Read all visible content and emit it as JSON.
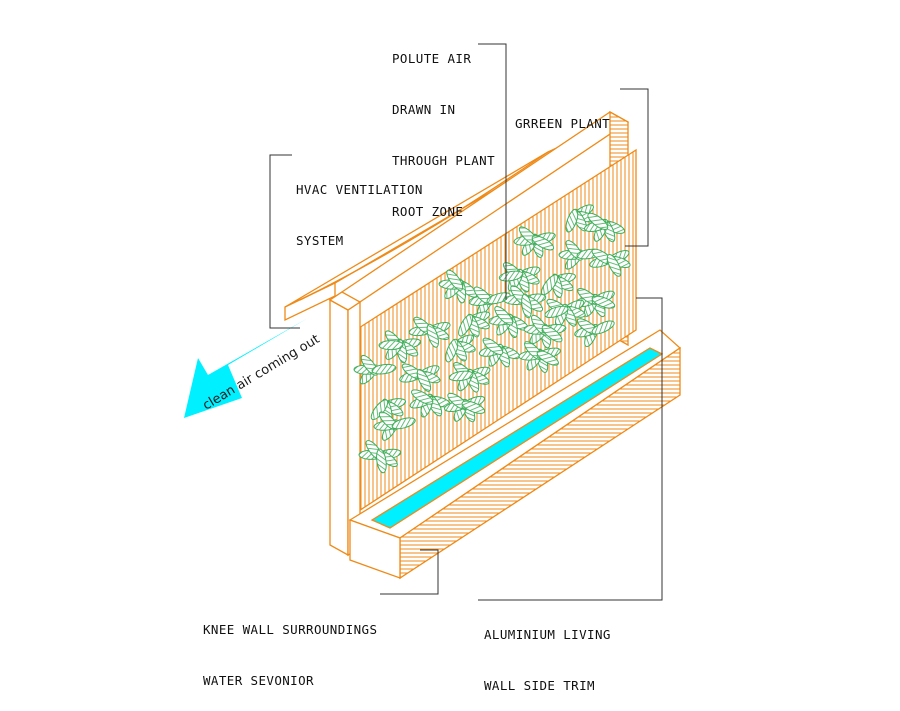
{
  "colors": {
    "outline": "#ef8a17",
    "plant_fill": "#3fae5a",
    "water": "#00f0ff",
    "arrow": "#00f0ff",
    "leader": "#333333"
  },
  "labels": {
    "polute_air": [
      "POLUTE AIR",
      "DRAWN IN",
      "THROUGH PLANT",
      "ROOT ZONE"
    ],
    "green_plant": [
      "GRREEN PLANT"
    ],
    "hvac": [
      "HVAC VENTILATION",
      "SYSTEM"
    ],
    "knee_wall": [
      "KNEE WALL SURROUNDINGS",
      "WATER SEVONIOR"
    ],
    "trim": [
      "ALUMINIUM LIVING",
      "WALL SIDE TRIM"
    ]
  },
  "arrow": {
    "text": "clean air coming out",
    "icon": "arrow-left-down-icon"
  }
}
